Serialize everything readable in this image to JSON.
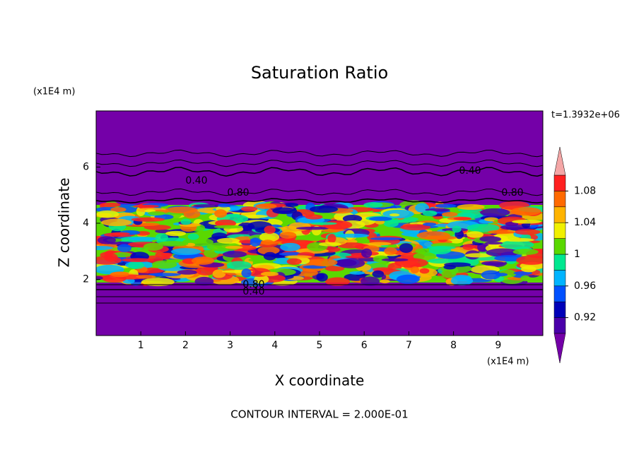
{
  "chart_data": {
    "type": "contour",
    "title": "Saturation Ratio",
    "xlabel": "X coordinate",
    "ylabel": "Z coordinate",
    "x_unit": "(x1E4 m)",
    "y_unit": "(x1E4 m)",
    "time_label": "t=1.3932e+06",
    "footnote": "CONTOUR INTERVAL = 2.000E-01",
    "xlim": [
      0,
      10
    ],
    "xticks": [
      1,
      2,
      3,
      4,
      5,
      6,
      7,
      8,
      9
    ],
    "ylim": [
      0,
      8
    ],
    "yticks": [
      2,
      4,
      6
    ],
    "background_color": "#7400a8",
    "contour_labels": [
      {
        "value": 0.4,
        "label": "0.40"
      },
      {
        "value": 0.8,
        "label": "0.80"
      },
      {
        "value": 0.4,
        "label": "0.40"
      },
      {
        "value": 0.8,
        "label": "0.80"
      },
      {
        "value": 0.4,
        "label": "0.40"
      },
      {
        "value": 0.8,
        "label": "0.80"
      }
    ],
    "colorbar": {
      "levels": [
        0.9,
        0.92,
        0.94,
        0.96,
        0.98,
        1,
        1.02,
        1.04,
        1.06,
        1.08,
        1.1
      ],
      "colors": [
        "#4a00aa",
        "#0000b8",
        "#0050ff",
        "#00b4ff",
        "#00e890",
        "#5ad800",
        "#f0f000",
        "#ffb400",
        "#ff6a00",
        "#ff2020"
      ],
      "over_color": "#f4a6a6",
      "under_color": "#7400a8",
      "ticks": [
        0.92,
        0.96,
        1,
        1.04,
        1.08
      ]
    }
  }
}
